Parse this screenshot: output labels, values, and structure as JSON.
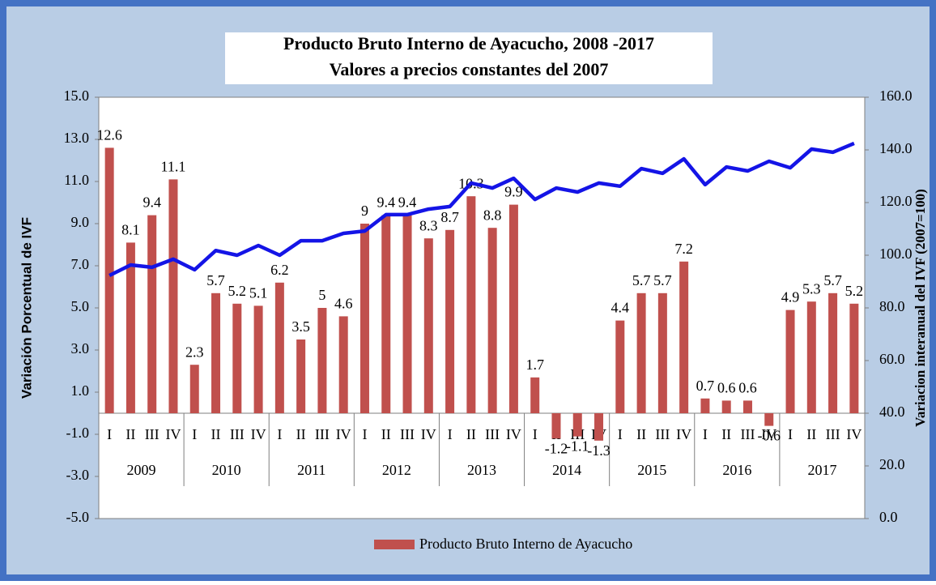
{
  "chart_data": {
    "type": "bar-line",
    "title": "Producto Bruto Interno de Ayacucho, 2008 -2017",
    "subtitle": "Valores a precios constantes del 2007",
    "y_label": "Variación Porcentual de IVF",
    "y2_label": "Variacion interanual del IVF (2007=100)",
    "categories": [
      "I",
      "II",
      "III",
      "IV",
      "I",
      "II",
      "III",
      "IV",
      "I",
      "II",
      "III",
      "IV",
      "I",
      "II",
      "III",
      "IV",
      "I",
      "II",
      "III",
      "IV",
      "I",
      "II",
      "III",
      "IV",
      "I",
      "II",
      "III",
      "IV",
      "I",
      "II",
      "III",
      "IV",
      "I",
      "II",
      "III",
      "IV"
    ],
    "groups": [
      "2009",
      "2010",
      "2011",
      "2012",
      "2013",
      "2014",
      "2015",
      "2016",
      "2017"
    ],
    "series": [
      {
        "name": "Producto Bruto Interno de Ayacucho",
        "color": "#c0504d",
        "values": [
          12.6,
          8.1,
          9.4,
          11.1,
          2.3,
          5.7,
          5.2,
          5.1,
          6.2,
          3.5,
          5.0,
          4.6,
          9.0,
          9.4,
          9.4,
          8.3,
          8.7,
          10.3,
          8.8,
          9.9,
          1.7,
          -1.2,
          -1.1,
          -1.3,
          4.4,
          5.7,
          5.7,
          7.2,
          0.7,
          0.6,
          0.6,
          -0.6,
          4.9,
          5.3,
          5.7,
          5.2
        ]
      },
      {
        "color": "#1414e6",
        "axis": "y2",
        "values": [
          92.3,
          96.3,
          95.4,
          98.5,
          94.5,
          101.8,
          100,
          103.7,
          100,
          105.5,
          105.5,
          108.3,
          109.2,
          115.4,
          115.4,
          117.5,
          118.5,
          127.4,
          125.5,
          129.2,
          121.2,
          125.5,
          124,
          127.4,
          126.2,
          132.9,
          131.1,
          136.6,
          126.8,
          133.5,
          132,
          135.7,
          133.2,
          140.3,
          139.1,
          142.5
        ]
      }
    ],
    "ylim": [
      -5,
      15
    ],
    "yticks": [
      {
        "value": -5,
        "label": "-5.0"
      },
      {
        "value": -3,
        "label": "-3.0"
      },
      {
        "value": -1,
        "label": "-1.0"
      },
      {
        "value": 1,
        "label": "1.0"
      },
      {
        "value": 3,
        "label": "3.0"
      },
      {
        "value": 5,
        "label": "5.0"
      },
      {
        "value": 7,
        "label": "7.0"
      },
      {
        "value": 9,
        "label": "9.0"
      },
      {
        "value": 11,
        "label": "11.0"
      },
      {
        "value": 13,
        "label": "13.0"
      },
      {
        "value": 15,
        "label": "15.0"
      }
    ],
    "y2lim": [
      0,
      160
    ],
    "y2ticks": [
      {
        "value": 0,
        "label": "0.0"
      },
      {
        "value": 20,
        "label": "20.0"
      },
      {
        "value": 40,
        "label": "40.0"
      },
      {
        "value": 60,
        "label": "60.0"
      },
      {
        "value": 80,
        "label": "80.0"
      },
      {
        "value": 100,
        "label": "100.0"
      },
      {
        "value": 120,
        "label": "120.0"
      },
      {
        "value": 140,
        "label": "140.0"
      },
      {
        "value": 160,
        "label": "160.0"
      }
    ],
    "legend": "bottom"
  }
}
